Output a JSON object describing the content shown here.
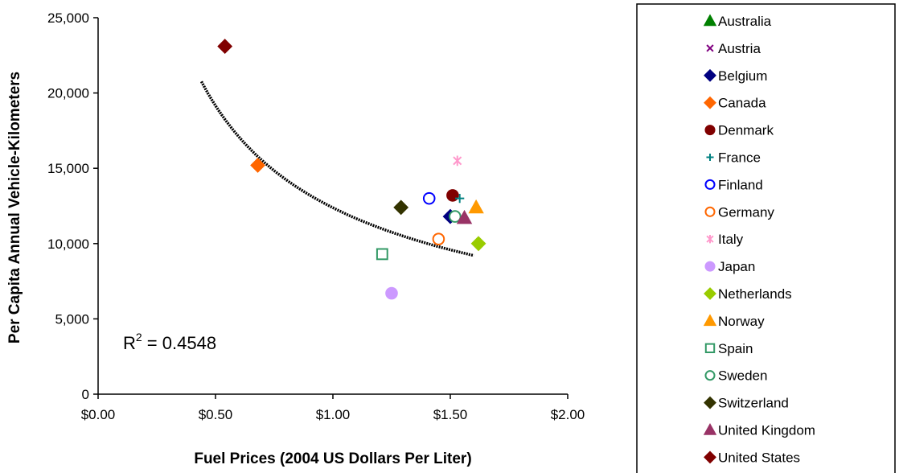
{
  "chart_data": {
    "type": "scatter",
    "title": "",
    "xlabel": "Fuel Prices (2004 US Dollars Per Liter)",
    "ylabel": "Per Capita Annual Vehicle-Kilometers",
    "xlim": [
      0,
      2
    ],
    "ylim": [
      0,
      25000
    ],
    "x_ticks": [
      0,
      0.5,
      1,
      1.5,
      2
    ],
    "x_tick_labels": [
      "$0.00",
      "$0.50",
      "$1.00",
      "$1.50",
      "$2.00"
    ],
    "y_ticks": [
      0,
      5000,
      10000,
      15000,
      20000,
      25000
    ],
    "y_tick_labels": [
      "0",
      "5,000",
      "10,000",
      "15,000",
      "20,000",
      "25,000"
    ],
    "grid": false,
    "legend_position": "right",
    "annotation": {
      "base": "R",
      "superscript": "2",
      "text": " = 0.4548"
    },
    "trendline": {
      "type": "power",
      "x_range": [
        0.44,
        1.6
      ],
      "coef": 12380,
      "exp": -0.63,
      "color": "#000000"
    },
    "series": [
      {
        "name": "Australia",
        "marker": "triangle",
        "color": "#008000",
        "fill": true,
        "points": []
      },
      {
        "name": "Austria",
        "marker": "x",
        "color": "#800080",
        "fill": false,
        "points": []
      },
      {
        "name": "Belgium",
        "marker": "diamond",
        "color": "#000080",
        "fill": true,
        "points": [
          [
            1.5,
            11800
          ]
        ]
      },
      {
        "name": "Canada",
        "marker": "diamond",
        "color": "#ff6600",
        "fill": true,
        "points": [
          [
            0.68,
            15200
          ]
        ]
      },
      {
        "name": "Denmark",
        "marker": "circle",
        "color": "#800000",
        "fill": true,
        "points": [
          [
            1.51,
            13200
          ]
        ]
      },
      {
        "name": "France",
        "marker": "plus",
        "color": "#008080",
        "fill": false,
        "points": [
          [
            1.54,
            13000
          ]
        ]
      },
      {
        "name": "Finland",
        "marker": "circle",
        "color": "#0000ff",
        "fill": false,
        "points": [
          [
            1.41,
            13000
          ]
        ]
      },
      {
        "name": "Germany",
        "marker": "circle",
        "color": "#ff6600",
        "fill": false,
        "points": [
          [
            1.45,
            10300
          ]
        ]
      },
      {
        "name": "Italy",
        "marker": "star",
        "color": "#ff99cc",
        "fill": false,
        "points": [
          [
            1.53,
            15500
          ]
        ]
      },
      {
        "name": "Japan",
        "marker": "circle",
        "color": "#cc99ff",
        "fill": true,
        "points": [
          [
            1.25,
            6700
          ]
        ]
      },
      {
        "name": "Netherlands",
        "marker": "diamond",
        "color": "#99cc00",
        "fill": true,
        "points": [
          [
            1.62,
            10000
          ]
        ]
      },
      {
        "name": "Norway",
        "marker": "triangle",
        "color": "#ff9900",
        "fill": true,
        "points": [
          [
            1.61,
            12400
          ]
        ]
      },
      {
        "name": "Spain",
        "marker": "square",
        "color": "#339966",
        "fill": false,
        "points": [
          [
            1.21,
            9300
          ]
        ]
      },
      {
        "name": "Sweden",
        "marker": "circle",
        "color": "#339966",
        "fill": false,
        "points": [
          [
            1.52,
            11800
          ]
        ]
      },
      {
        "name": "Switzerland",
        "marker": "diamond",
        "color": "#333300",
        "fill": true,
        "points": [
          [
            1.29,
            12400
          ]
        ]
      },
      {
        "name": "United Kingdom",
        "marker": "triangle",
        "color": "#993366",
        "fill": true,
        "points": [
          [
            1.56,
            11700
          ]
        ]
      },
      {
        "name": "United States",
        "marker": "diamond",
        "color": "#800000",
        "fill": true,
        "points": [
          [
            0.54,
            23100
          ]
        ]
      }
    ]
  }
}
